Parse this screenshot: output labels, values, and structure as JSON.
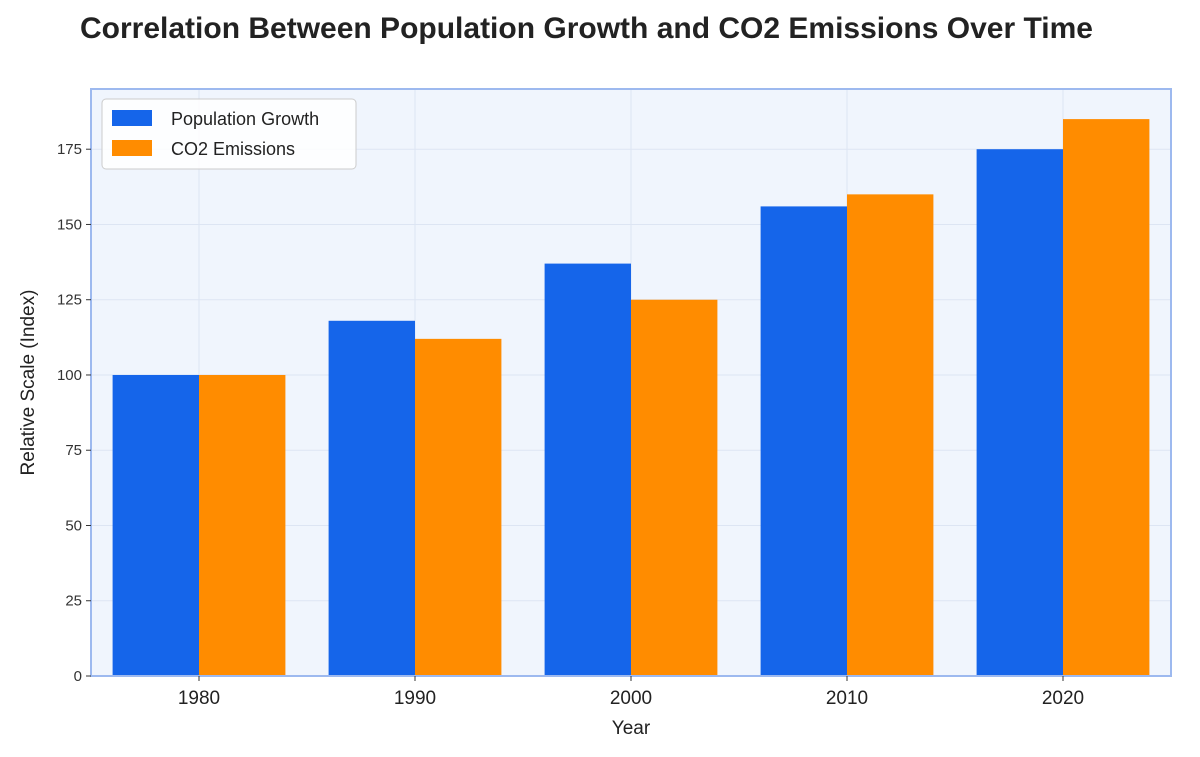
{
  "chart_data": {
    "type": "bar",
    "title": "Correlation Between Population Growth and CO2 Emissions Over Time",
    "xlabel": "Year",
    "ylabel": "Relative Scale (Index)",
    "categories": [
      "1980",
      "1990",
      "2000",
      "2010",
      "2020"
    ],
    "series": [
      {
        "name": "Population Growth",
        "values": [
          100,
          118,
          137,
          156,
          175
        ],
        "color": "#1565EA"
      },
      {
        "name": "CO2 Emissions",
        "values": [
          100,
          112,
          125,
          160,
          185
        ],
        "color": "#FF8C00"
      }
    ],
    "ylim": [
      0,
      195
    ],
    "yticks": [
      0,
      25,
      50,
      75,
      100,
      125,
      150,
      175
    ],
    "grid": true,
    "legend_position": "top-left",
    "colors": {
      "plot_background": "#F0F5FD",
      "plot_border": "#9DB9EF",
      "grid": "#DDE5F3"
    }
  }
}
